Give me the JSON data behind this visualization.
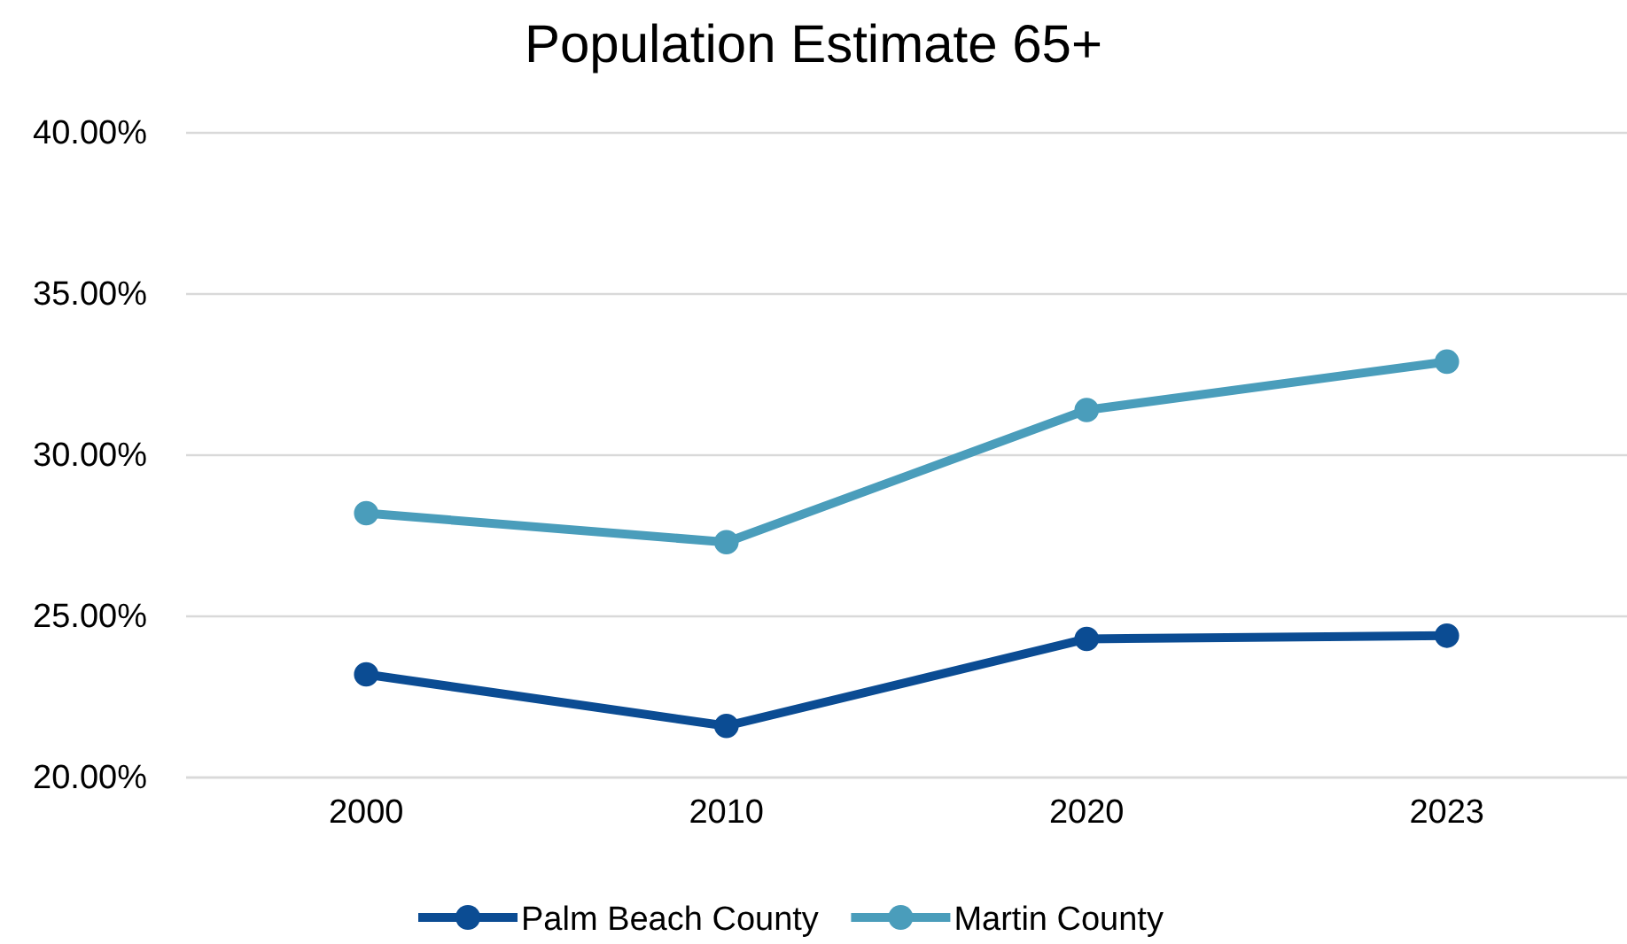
{
  "chart_data": {
    "type": "line",
    "title": "Population Estimate 65+",
    "categories": [
      "2000",
      "2010",
      "2020",
      "2023"
    ],
    "series": [
      {
        "name": "Palm Beach County",
        "color": "#0b4c93",
        "values": [
          23.2,
          21.6,
          24.3,
          24.4
        ]
      },
      {
        "name": "Martin County",
        "color": "#4a9dbb",
        "values": [
          28.2,
          27.3,
          31.4,
          32.9
        ]
      }
    ],
    "ylim": [
      20,
      40
    ],
    "yticks": [
      {
        "value": 20,
        "label": "20.00%"
      },
      {
        "value": 25,
        "label": "25.00%"
      },
      {
        "value": 30,
        "label": "30.00%"
      },
      {
        "value": 35,
        "label": "35.00%"
      },
      {
        "value": 40,
        "label": "40.00%"
      }
    ],
    "grid": "y",
    "legend": "bottom",
    "marker": "circle",
    "line_style": "solid"
  }
}
